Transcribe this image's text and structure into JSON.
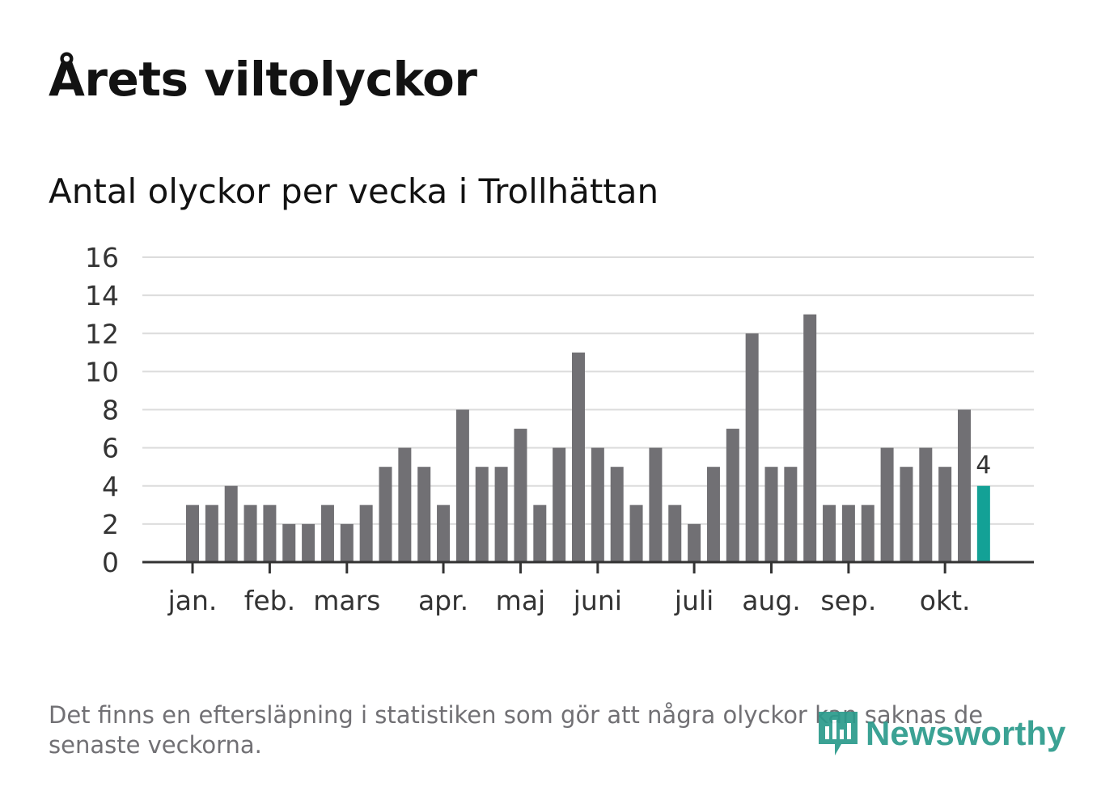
{
  "header": {
    "title": "Årets viltolyckor",
    "subtitle": "Antal olyckor per vecka i Trollhättan"
  },
  "footer": {
    "note": "Det finns en eftersläpning i statistiken som gör att några olyckor kan saknas de senaste veckorna.",
    "brand": "Newsworthy"
  },
  "colors": {
    "bar": "#717074",
    "highlight": "#13a196",
    "grid": "#dcdcdc",
    "axis": "#333333",
    "text": "#333333",
    "brand": "#2b9b8c"
  },
  "chart_data": {
    "type": "bar",
    "title": "Antal olyckor per vecka i Trollhättan",
    "xlabel": "",
    "ylabel": "",
    "ylim": [
      0,
      16
    ],
    "yticks": [
      0,
      2,
      4,
      6,
      8,
      10,
      12,
      14,
      16
    ],
    "grid": true,
    "weeks": [
      1,
      2,
      3,
      4,
      5,
      6,
      7,
      8,
      9,
      10,
      11,
      12,
      13,
      14,
      15,
      16,
      17,
      18,
      19,
      20,
      21,
      22,
      23,
      24,
      25,
      26,
      27,
      28,
      29,
      30,
      31,
      32,
      33,
      34,
      35,
      36,
      37,
      38,
      39,
      40,
      41,
      42
    ],
    "values": [
      3,
      3,
      4,
      3,
      3,
      2,
      2,
      3,
      2,
      3,
      5,
      6,
      5,
      3,
      8,
      5,
      5,
      7,
      3,
      6,
      11,
      6,
      5,
      3,
      6,
      3,
      2,
      5,
      7,
      12,
      5,
      5,
      13,
      3,
      3,
      3,
      6,
      5,
      6,
      5,
      8,
      4
    ],
    "highlight_index": 41,
    "highlight_label": "4",
    "month_ticks": [
      {
        "label": "jan.",
        "week": 1
      },
      {
        "label": "feb.",
        "week": 5
      },
      {
        "label": "mars",
        "week": 9
      },
      {
        "label": "apr.",
        "week": 14
      },
      {
        "label": "maj",
        "week": 18
      },
      {
        "label": "juni",
        "week": 22
      },
      {
        "label": "juli",
        "week": 27
      },
      {
        "label": "aug.",
        "week": 31
      },
      {
        "label": "sep.",
        "week": 35
      },
      {
        "label": "okt.",
        "week": 40
      }
    ]
  }
}
